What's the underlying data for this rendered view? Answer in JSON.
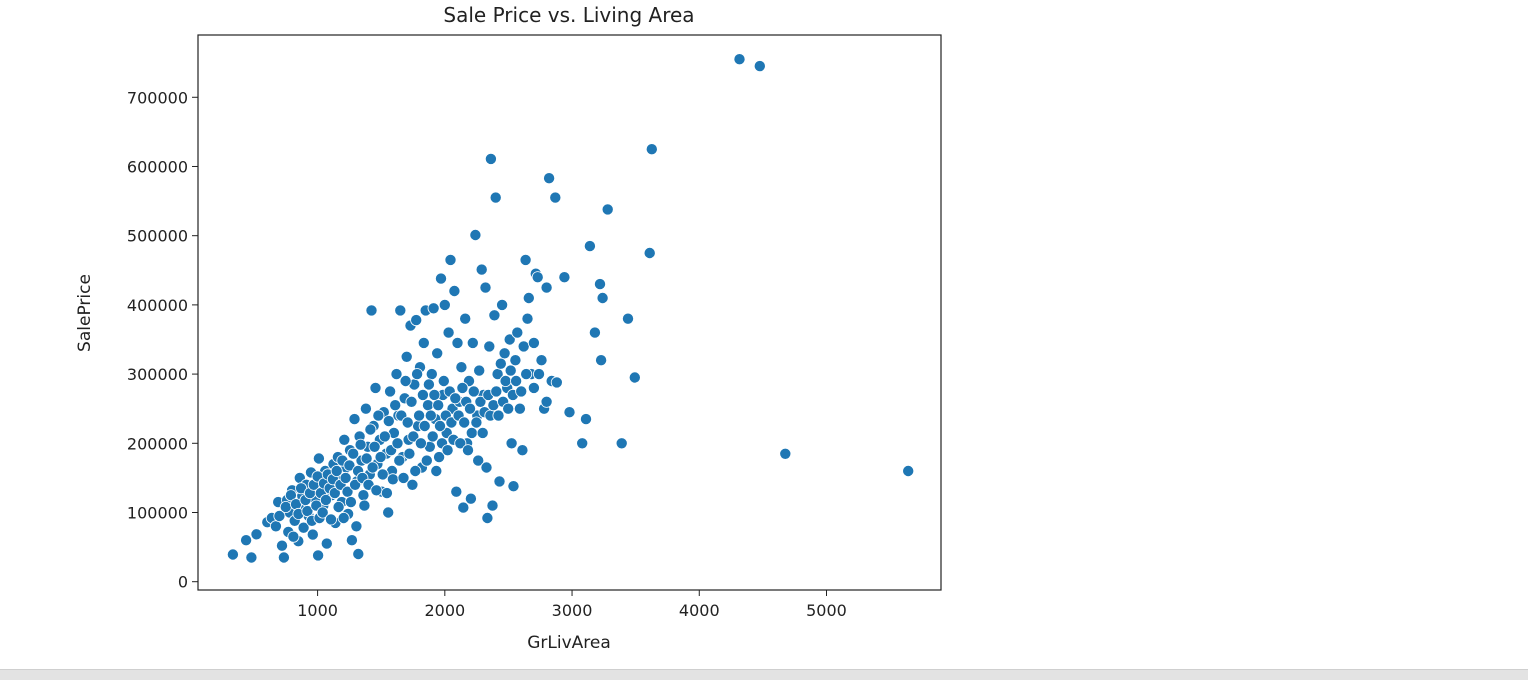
{
  "chart_data": {
    "type": "scatter",
    "title": "Sale Price vs. Living Area",
    "xlabel": "GrLivArea",
    "ylabel": "SalePrice",
    "xlim": [
      60,
      5900
    ],
    "ylim": [
      -12000,
      790000
    ],
    "xticks": [
      1000,
      2000,
      3000,
      4000,
      5000
    ],
    "xtick_labels": [
      "1000",
      "2000",
      "3000",
      "4000",
      "5000"
    ],
    "yticks": [
      0,
      100000,
      200000,
      300000,
      400000,
      500000,
      600000,
      700000
    ],
    "ytick_labels": [
      "0",
      "100000",
      "200000",
      "300000",
      "400000",
      "500000",
      "600000",
      "700000"
    ],
    "grid": false,
    "marker_color": "#1f77b4",
    "marker_edge_color": "#ffffff",
    "points": [
      [
        334,
        39300
      ],
      [
        438,
        60000
      ],
      [
        480,
        35000
      ],
      [
        520,
        68500
      ],
      [
        605,
        86000
      ],
      [
        640,
        92000
      ],
      [
        672,
        80000
      ],
      [
        690,
        115000
      ],
      [
        720,
        52000
      ],
      [
        735,
        34900
      ],
      [
        760,
        118000
      ],
      [
        780,
        100000
      ],
      [
        800,
        132000
      ],
      [
        820,
        88000
      ],
      [
        848,
        58500
      ],
      [
        860,
        150000
      ],
      [
        880,
        124000
      ],
      [
        895,
        105000
      ],
      [
        912,
        140000
      ],
      [
        930,
        95000
      ],
      [
        948,
        158000
      ],
      [
        962,
        68000
      ],
      [
        980,
        120000
      ],
      [
        1004,
        38000
      ],
      [
        1010,
        178000
      ],
      [
        1030,
        135000
      ],
      [
        1045,
        110000
      ],
      [
        1060,
        160000
      ],
      [
        1072,
        55000
      ],
      [
        1090,
        145000
      ],
      [
        1110,
        125000
      ],
      [
        1125,
        170000
      ],
      [
        1140,
        85000
      ],
      [
        1160,
        180000
      ],
      [
        1175,
        150000
      ],
      [
        1190,
        115000
      ],
      [
        1210,
        205000
      ],
      [
        1225,
        165000
      ],
      [
        1240,
        98000
      ],
      [
        1255,
        190000
      ],
      [
        1270,
        60000
      ],
      [
        1290,
        235000
      ],
      [
        1310,
        145000
      ],
      [
        1320,
        40000
      ],
      [
        1330,
        210000
      ],
      [
        1345,
        175000
      ],
      [
        1360,
        125000
      ],
      [
        1380,
        250000
      ],
      [
        1395,
        195000
      ],
      [
        1410,
        155000
      ],
      [
        1424,
        392000
      ],
      [
        1440,
        225000
      ],
      [
        1455,
        280000
      ],
      [
        1470,
        170000
      ],
      [
        1490,
        205000
      ],
      [
        1505,
        130000
      ],
      [
        1520,
        245000
      ],
      [
        1540,
        185000
      ],
      [
        1555,
        100000
      ],
      [
        1570,
        275000
      ],
      [
        1585,
        160000
      ],
      [
        1600,
        215000
      ],
      [
        1620,
        300000
      ],
      [
        1635,
        240000
      ],
      [
        1650,
        392000
      ],
      [
        1668,
        180000
      ],
      [
        1685,
        265000
      ],
      [
        1700,
        325000
      ],
      [
        1715,
        205000
      ],
      [
        1730,
        370000
      ],
      [
        1745,
        140000
      ],
      [
        1760,
        285000
      ],
      [
        1775,
        378000
      ],
      [
        1790,
        225000
      ],
      [
        1805,
        310000
      ],
      [
        1820,
        165000
      ],
      [
        1835,
        345000
      ],
      [
        1850,
        392000
      ],
      [
        1868,
        255000
      ],
      [
        1882,
        195000
      ],
      [
        1898,
        300000
      ],
      [
        1912,
        395000
      ],
      [
        1926,
        235000
      ],
      [
        1940,
        330000
      ],
      [
        1955,
        180000
      ],
      [
        1970,
        438000
      ],
      [
        1985,
        270000
      ],
      [
        2000,
        400000
      ],
      [
        2015,
        215000
      ],
      [
        2030,
        360000
      ],
      [
        2045,
        465000
      ],
      [
        2060,
        250000
      ],
      [
        2075,
        420000
      ],
      [
        2090,
        130000
      ],
      [
        2100,
        345000
      ],
      [
        2115,
        260000
      ],
      [
        2130,
        310000
      ],
      [
        2145,
        107000
      ],
      [
        2160,
        380000
      ],
      [
        2175,
        200000
      ],
      [
        2190,
        290000
      ],
      [
        2205,
        120000
      ],
      [
        2220,
        345000
      ],
      [
        2240,
        501000
      ],
      [
        2255,
        240000
      ],
      [
        2270,
        305000
      ],
      [
        2290,
        451000
      ],
      [
        2305,
        270000
      ],
      [
        2320,
        425000
      ],
      [
        2335,
        92000
      ],
      [
        2350,
        340000
      ],
      [
        2362,
        611000
      ],
      [
        2375,
        110000
      ],
      [
        2390,
        385000
      ],
      [
        2400,
        555000
      ],
      [
        2415,
        300000
      ],
      [
        2430,
        145000
      ],
      [
        2450,
        400000
      ],
      [
        2470,
        330000
      ],
      [
        2490,
        280000
      ],
      [
        2510,
        350000
      ],
      [
        2525,
        200000
      ],
      [
        2540,
        138000
      ],
      [
        2555,
        320000
      ],
      [
        2570,
        360000
      ],
      [
        2590,
        250000
      ],
      [
        2610,
        190000
      ],
      [
        2620,
        340000
      ],
      [
        2635,
        465000
      ],
      [
        2650,
        380000
      ],
      [
        2660,
        410000
      ],
      [
        2680,
        300000
      ],
      [
        2700,
        345000
      ],
      [
        2715,
        445000
      ],
      [
        2730,
        440000
      ],
      [
        2760,
        320000
      ],
      [
        2780,
        250000
      ],
      [
        2800,
        425000
      ],
      [
        2820,
        583000
      ],
      [
        2840,
        290000
      ],
      [
        2868,
        555000
      ],
      [
        2880,
        288000
      ],
      [
        2940,
        440000
      ],
      [
        2980,
        245000
      ],
      [
        3080,
        200000
      ],
      [
        3110,
        235000
      ],
      [
        3140,
        485000
      ],
      [
        3180,
        360000
      ],
      [
        3220,
        430000
      ],
      [
        3228,
        320000
      ],
      [
        3240,
        410000
      ],
      [
        3280,
        538000
      ],
      [
        3390,
        200000
      ],
      [
        3440,
        380000
      ],
      [
        3493,
        295000
      ],
      [
        3610,
        475000
      ],
      [
        3627,
        625000
      ],
      [
        4316,
        755000
      ],
      [
        4476,
        745000
      ],
      [
        4676,
        184750
      ],
      [
        5642,
        160000
      ],
      [
        700,
        95000
      ],
      [
        750,
        108000
      ],
      [
        770,
        72000
      ],
      [
        790,
        125000
      ],
      [
        810,
        65000
      ],
      [
        830,
        112000
      ],
      [
        850,
        98000
      ],
      [
        870,
        135000
      ],
      [
        890,
        78000
      ],
      [
        905,
        118000
      ],
      [
        920,
        102000
      ],
      [
        940,
        128000
      ],
      [
        955,
        88000
      ],
      [
        970,
        140000
      ],
      [
        990,
        110000
      ],
      [
        1000,
        152000
      ],
      [
        1015,
        92000
      ],
      [
        1025,
        128000
      ],
      [
        1040,
        100000
      ],
      [
        1050,
        142000
      ],
      [
        1065,
        118000
      ],
      [
        1080,
        155000
      ],
      [
        1095,
        135000
      ],
      [
        1105,
        90000
      ],
      [
        1120,
        148000
      ],
      [
        1135,
        128000
      ],
      [
        1150,
        160000
      ],
      [
        1165,
        108000
      ],
      [
        1180,
        140000
      ],
      [
        1195,
        175000
      ],
      [
        1205,
        92000
      ],
      [
        1220,
        150000
      ],
      [
        1235,
        130000
      ],
      [
        1250,
        168000
      ],
      [
        1262,
        115000
      ],
      [
        1280,
        185000
      ],
      [
        1295,
        140000
      ],
      [
        1305,
        80000
      ],
      [
        1318,
        160000
      ],
      [
        1338,
        198000
      ],
      [
        1352,
        150000
      ],
      [
        1368,
        110000
      ],
      [
        1385,
        178000
      ],
      [
        1400,
        140000
      ],
      [
        1415,
        220000
      ],
      [
        1432,
        165000
      ],
      [
        1448,
        195000
      ],
      [
        1462,
        132000
      ],
      [
        1478,
        240000
      ],
      [
        1495,
        180000
      ],
      [
        1512,
        155000
      ],
      [
        1528,
        210000
      ],
      [
        1545,
        128000
      ],
      [
        1560,
        232000
      ],
      [
        1578,
        190000
      ],
      [
        1592,
        148000
      ],
      [
        1610,
        255000
      ],
      [
        1628,
        200000
      ],
      [
        1642,
        175000
      ],
      [
        1658,
        240000
      ],
      [
        1675,
        150000
      ],
      [
        1692,
        290000
      ],
      [
        1708,
        230000
      ],
      [
        1722,
        185000
      ],
      [
        1738,
        260000
      ],
      [
        1752,
        210000
      ],
      [
        1768,
        160000
      ],
      [
        1782,
        300000
      ],
      [
        1798,
        240000
      ],
      [
        1812,
        200000
      ],
      [
        1828,
        270000
      ],
      [
        1842,
        225000
      ],
      [
        1858,
        175000
      ],
      [
        1875,
        285000
      ],
      [
        1890,
        240000
      ],
      [
        1905,
        210000
      ],
      [
        1918,
        270000
      ],
      [
        1933,
        160000
      ],
      [
        1948,
        255000
      ],
      [
        1962,
        225000
      ],
      [
        1978,
        200000
      ],
      [
        1992,
        290000
      ],
      [
        2008,
        240000
      ],
      [
        2022,
        190000
      ],
      [
        2038,
        275000
      ],
      [
        2052,
        230000
      ],
      [
        2068,
        205000
      ],
      [
        2082,
        265000
      ],
      [
        2108,
        240000
      ],
      [
        2122,
        200000
      ],
      [
        2138,
        280000
      ],
      [
        2152,
        230000
      ],
      [
        2168,
        260000
      ],
      [
        2182,
        190000
      ],
      [
        2198,
        250000
      ],
      [
        2212,
        215000
      ],
      [
        2228,
        275000
      ],
      [
        2248,
        230000
      ],
      [
        2262,
        175000
      ],
      [
        2280,
        260000
      ],
      [
        2298,
        215000
      ],
      [
        2312,
        245000
      ],
      [
        2328,
        165000
      ],
      [
        2342,
        270000
      ],
      [
        2358,
        240000
      ],
      [
        2382,
        255000
      ],
      [
        2405,
        275000
      ],
      [
        2422,
        240000
      ],
      [
        2440,
        315000
      ],
      [
        2458,
        260000
      ],
      [
        2478,
        290000
      ],
      [
        2498,
        250000
      ],
      [
        2518,
        305000
      ],
      [
        2535,
        270000
      ],
      [
        2560,
        290000
      ],
      [
        2600,
        275000
      ],
      [
        2640,
        300000
      ],
      [
        2700,
        280000
      ],
      [
        2740,
        300000
      ],
      [
        2800,
        260000
      ]
    ]
  }
}
